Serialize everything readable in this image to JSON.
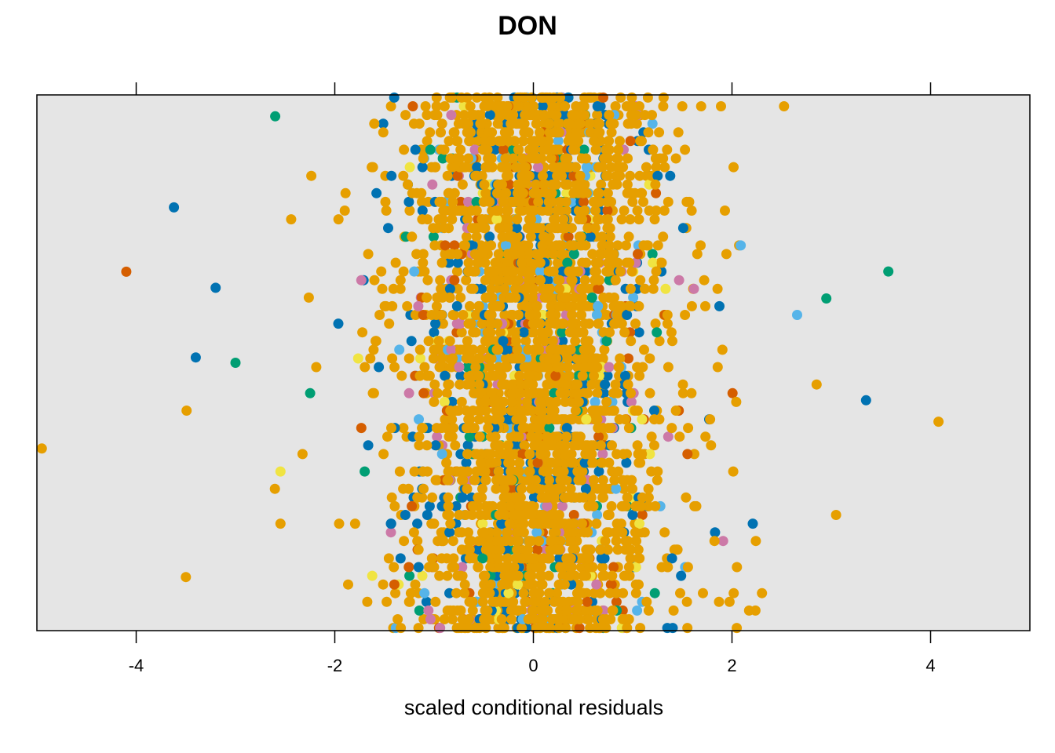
{
  "chart_data": {
    "type": "scatter",
    "title": "DON",
    "xlabel": "scaled conditional residuals",
    "ylabel": "",
    "xlim": [
      -5,
      5
    ],
    "xticks": [
      "-4",
      "-2",
      "0",
      "2",
      "4"
    ],
    "xtick_values": [
      -4,
      -2,
      0,
      2,
      4
    ],
    "grid": false,
    "legend": "none",
    "background_color": "#e5e5e5",
    "x_distribution": {
      "center": 0,
      "bulk_range": [
        -2,
        2
      ],
      "extreme_points": [
        {
          "x": -4.95,
          "y": 0.34,
          "color": "#e69f00"
        },
        {
          "x": -4.1,
          "y": 0.67,
          "color": "#d55e00"
        },
        {
          "x": -3.62,
          "y": 0.79,
          "color": "#0072b2"
        },
        {
          "x": -3.5,
          "y": 0.1,
          "color": "#e69f00"
        },
        {
          "x": -3.4,
          "y": 0.51,
          "color": "#0072b2"
        },
        {
          "x": -3.2,
          "y": 0.64,
          "color": "#0072b2"
        },
        {
          "x": -3.0,
          "y": 0.5,
          "color": "#009e73"
        },
        {
          "x": -2.6,
          "y": 0.96,
          "color": "#009e73"
        },
        {
          "x": 2.95,
          "y": 0.62,
          "color": "#009e73"
        },
        {
          "x": 3.35,
          "y": 0.43,
          "color": "#0072b2"
        },
        {
          "x": 4.08,
          "y": 0.39,
          "color": "#e69f00"
        }
      ]
    },
    "series_colors": [
      "#e69f00",
      "#0072b2",
      "#56b4e9",
      "#009e73",
      "#d55e00",
      "#cc79a7",
      "#f0e442"
    ]
  }
}
